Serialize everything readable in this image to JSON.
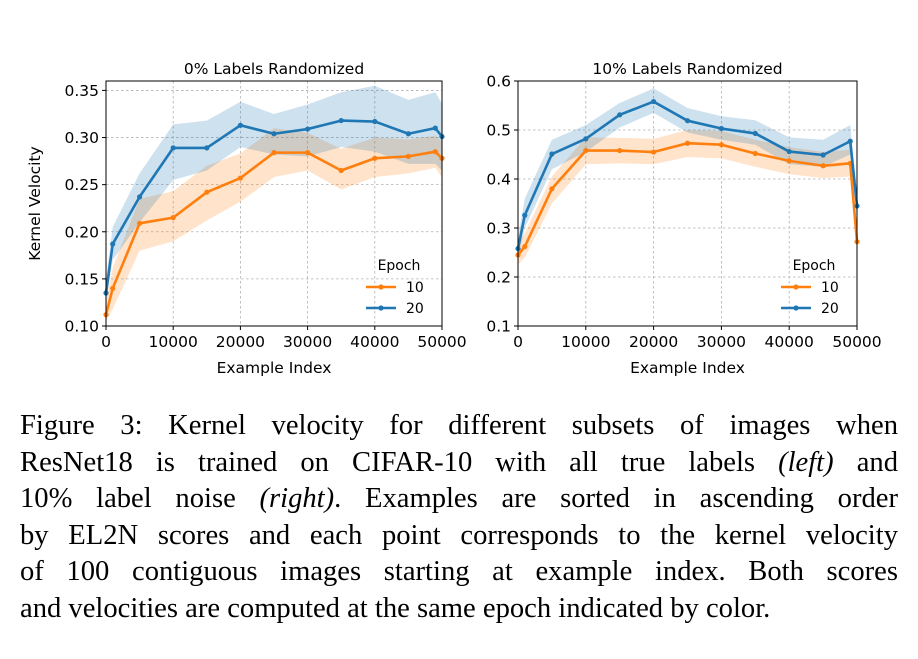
{
  "chart_data": [
    {
      "type": "line",
      "title": "0% Labels Randomized",
      "xlabel": "Example Index",
      "ylabel": "Kernel Velocity",
      "xlim": [
        0,
        50000
      ],
      "ylim": [
        0.1,
        0.36
      ],
      "xticks": [
        0,
        10000,
        20000,
        30000,
        40000,
        50000
      ],
      "xtick_labels": [
        "0",
        "10000",
        "20000",
        "30000",
        "40000",
        "50000"
      ],
      "yticks": [
        0.1,
        0.15,
        0.2,
        0.25,
        0.3,
        0.35
      ],
      "ytick_labels": [
        "0.10",
        "0.15",
        "0.20",
        "0.25",
        "0.30",
        "0.35"
      ],
      "grid": true,
      "legend": {
        "title": "Epoch",
        "placement": "lower-right"
      },
      "series": [
        {
          "name": "10",
          "color": "#ff7f0e",
          "x": [
            0,
            1000,
            5000,
            10000,
            15000,
            20000,
            25000,
            30000,
            35000,
            40000,
            45000,
            49000,
            50000
          ],
          "values": [
            0.112,
            0.14,
            0.209,
            0.215,
            0.242,
            0.257,
            0.284,
            0.284,
            0.265,
            0.278,
            0.28,
            0.285,
            0.278
          ],
          "lower": [
            0.105,
            0.118,
            0.18,
            0.19,
            0.212,
            0.232,
            0.258,
            0.265,
            0.245,
            0.258,
            0.262,
            0.268,
            0.258
          ],
          "upper": [
            0.125,
            0.162,
            0.235,
            0.243,
            0.27,
            0.283,
            0.31,
            0.305,
            0.288,
            0.3,
            0.298,
            0.302,
            0.296
          ]
        },
        {
          "name": "20",
          "color": "#1f77b4",
          "x": [
            0,
            1000,
            5000,
            10000,
            15000,
            20000,
            25000,
            30000,
            35000,
            40000,
            45000,
            49000,
            50000
          ],
          "values": [
            0.135,
            0.187,
            0.237,
            0.289,
            0.289,
            0.313,
            0.304,
            0.309,
            0.318,
            0.317,
            0.304,
            0.31,
            0.301
          ],
          "lower": [
            0.125,
            0.17,
            0.21,
            0.255,
            0.265,
            0.29,
            0.282,
            0.28,
            0.29,
            0.285,
            0.272,
            0.272,
            0.265
          ],
          "upper": [
            0.15,
            0.205,
            0.262,
            0.314,
            0.318,
            0.338,
            0.325,
            0.335,
            0.348,
            0.355,
            0.34,
            0.348,
            0.336
          ]
        }
      ]
    },
    {
      "type": "line",
      "title": "10% Labels Randomized",
      "xlabel": "Example Index",
      "ylabel": "",
      "xlim": [
        0,
        50000
      ],
      "ylim": [
        0.1,
        0.6
      ],
      "xticks": [
        0,
        10000,
        20000,
        30000,
        40000,
        50000
      ],
      "xtick_labels": [
        "0",
        "10000",
        "20000",
        "30000",
        "40000",
        "50000"
      ],
      "yticks": [
        0.1,
        0.2,
        0.3,
        0.4,
        0.5,
        0.6
      ],
      "ytick_labels": [
        "0.1",
        "0.2",
        "0.3",
        "0.4",
        "0.5",
        "0.6"
      ],
      "grid": true,
      "legend": {
        "title": "Epoch",
        "placement": "lower-right"
      },
      "series": [
        {
          "name": "10",
          "color": "#ff7f0e",
          "x": [
            0,
            1000,
            5000,
            10000,
            15000,
            20000,
            25000,
            30000,
            35000,
            40000,
            45000,
            49000,
            50000
          ],
          "values": [
            0.245,
            0.262,
            0.38,
            0.458,
            0.458,
            0.455,
            0.473,
            0.47,
            0.452,
            0.437,
            0.427,
            0.432,
            0.272
          ],
          "lower": [
            0.225,
            0.24,
            0.35,
            0.43,
            0.432,
            0.43,
            0.445,
            0.442,
            0.425,
            0.41,
            0.402,
            0.405,
            0.25
          ],
          "upper": [
            0.268,
            0.29,
            0.405,
            0.485,
            0.484,
            0.482,
            0.5,
            0.498,
            0.48,
            0.465,
            0.455,
            0.46,
            0.3
          ]
        },
        {
          "name": "20",
          "color": "#1f77b4",
          "x": [
            0,
            1000,
            5000,
            10000,
            15000,
            20000,
            25000,
            30000,
            35000,
            40000,
            45000,
            49000,
            50000
          ],
          "values": [
            0.258,
            0.326,
            0.451,
            0.482,
            0.531,
            0.558,
            0.519,
            0.503,
            0.493,
            0.456,
            0.449,
            0.477,
            0.345
          ],
          "lower": [
            0.24,
            0.3,
            0.42,
            0.455,
            0.505,
            0.535,
            0.495,
            0.48,
            0.47,
            0.43,
            0.425,
            0.45,
            0.32
          ],
          "upper": [
            0.28,
            0.36,
            0.48,
            0.51,
            0.555,
            0.585,
            0.545,
            0.528,
            0.52,
            0.485,
            0.48,
            0.51,
            0.375
          ]
        }
      ]
    }
  ],
  "caption": {
    "lines": [
      {
        "text": "Figure 3:  Kernel velocity for different subsets of images when",
        "italic": "",
        "after": ""
      },
      {
        "text": "ResNet18 is trained on CIFAR-10 with all true labels ",
        "italic": "(left)",
        "after": " and"
      },
      {
        "text": "10% label noise ",
        "italic": "(right)",
        "after": ". Examples are sorted in ascending order"
      },
      {
        "text": "by EL2N scores and each point corresponds to the kernel velocity",
        "italic": "",
        "after": ""
      },
      {
        "text": "of 100 contiguous images starting at example index.  Both scores",
        "italic": "",
        "after": ""
      },
      {
        "text": "and velocities are computed at the same epoch indicated by color.",
        "italic": "",
        "after": ""
      }
    ]
  }
}
